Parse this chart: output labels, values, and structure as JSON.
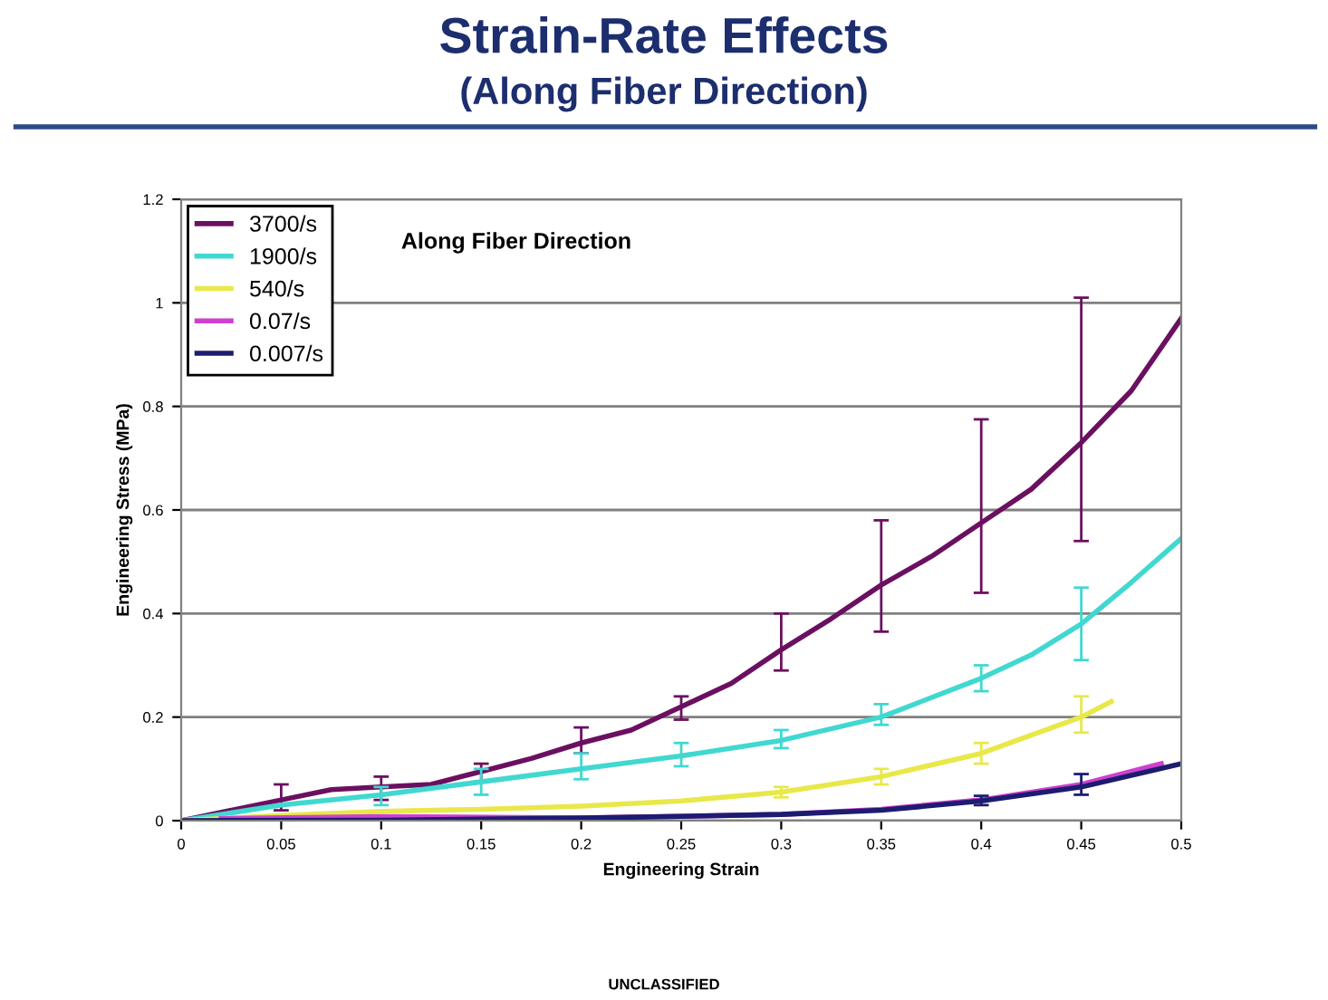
{
  "chart_data": {
    "type": "line",
    "title": "Strain-Rate Effects",
    "subtitle": "(Along Fiber Direction)",
    "xlabel": "Engineering Strain",
    "ylabel": "Engineering Stress (MPa)",
    "annotations": [
      "Along Fiber Direction",
      "UNCLASSIFIED"
    ],
    "xlim": [
      0,
      0.5
    ],
    "xticks": [
      0,
      0.05,
      0.1,
      0.15,
      0.2,
      0.25,
      0.3,
      0.35,
      0.4,
      0.45,
      0.5
    ],
    "ylim": [
      0,
      1.2
    ],
    "yticks": [
      0,
      0.2,
      0.4,
      0.6,
      0.8,
      1,
      1.2
    ],
    "grid": "y",
    "legend": "top left",
    "marker": "none",
    "line_style": "solid",
    "series": [
      {
        "name": "3700/s",
        "color": "#6b1060",
        "x": [
          0,
          0.05,
          0.075,
          0.1,
          0.125,
          0.15,
          0.175,
          0.2,
          0.225,
          0.25,
          0.275,
          0.3,
          0.325,
          0.35,
          0.375,
          0.4,
          0.425,
          0.45,
          0.475,
          0.5
        ],
        "values": [
          0,
          0.04,
          0.06,
          0.065,
          0.07,
          0.095,
          0.12,
          0.15,
          0.175,
          0.22,
          0.265,
          0.33,
          0.39,
          0.455,
          0.51,
          0.575,
          0.64,
          0.73,
          0.83,
          0.97
        ],
        "errors": [
          null,
          [
            0.02,
            0.07
          ],
          null,
          [
            0.04,
            0.085
          ],
          null,
          [
            0.075,
            0.11
          ],
          null,
          [
            0.13,
            0.18
          ],
          null,
          [
            0.195,
            0.24
          ],
          null,
          [
            0.29,
            0.4
          ],
          null,
          [
            0.365,
            0.58
          ],
          null,
          [
            0.44,
            0.775
          ],
          null,
          [
            0.54,
            1.01
          ],
          null,
          null
        ]
      },
      {
        "name": "1900/s",
        "color": "#40d8d0",
        "x": [
          0,
          0.05,
          0.1,
          0.15,
          0.2,
          0.25,
          0.3,
          0.35,
          0.4,
          0.425,
          0.45,
          0.475,
          0.5
        ],
        "values": [
          0,
          0.03,
          0.05,
          0.075,
          0.1,
          0.125,
          0.155,
          0.2,
          0.275,
          0.32,
          0.38,
          0.46,
          0.545
        ],
        "errors": [
          null,
          null,
          [
            0.03,
            0.065
          ],
          [
            0.05,
            0.1
          ],
          [
            0.08,
            0.13
          ],
          [
            0.105,
            0.15
          ],
          [
            0.14,
            0.175
          ],
          [
            0.185,
            0.225
          ],
          [
            0.25,
            0.3
          ],
          null,
          [
            0.31,
            0.45
          ],
          null,
          null
        ]
      },
      {
        "name": "540/s",
        "color": "#e8e84a",
        "x": [
          0,
          0.05,
          0.1,
          0.15,
          0.2,
          0.25,
          0.3,
          0.35,
          0.4,
          0.45,
          0.465
        ],
        "values": [
          0,
          0.01,
          0.018,
          0.022,
          0.028,
          0.038,
          0.055,
          0.085,
          0.13,
          0.2,
          0.23
        ],
        "errors": [
          null,
          null,
          null,
          null,
          null,
          null,
          [
            0.045,
            0.065
          ],
          [
            0.07,
            0.1
          ],
          [
            0.11,
            0.15
          ],
          [
            0.17,
            0.24
          ],
          null
        ]
      },
      {
        "name": "0.07/s",
        "color": "#d040d0",
        "x": [
          0.02,
          0.1,
          0.2,
          0.3,
          0.35,
          0.4,
          0.45,
          0.49
        ],
        "values": [
          0.004,
          0.008,
          0.005,
          0.012,
          0.022,
          0.04,
          0.07,
          0.11
        ]
      },
      {
        "name": "0.007/s",
        "color": "#1c1c70",
        "x": [
          0,
          0.1,
          0.2,
          0.3,
          0.35,
          0.4,
          0.45,
          0.5
        ],
        "values": [
          0,
          0.001,
          0.005,
          0.012,
          0.02,
          0.038,
          0.065,
          0.11
        ],
        "errors": [
          null,
          null,
          null,
          null,
          null,
          [
            0.03,
            0.048
          ],
          [
            0.05,
            0.09
          ],
          null
        ]
      }
    ]
  }
}
